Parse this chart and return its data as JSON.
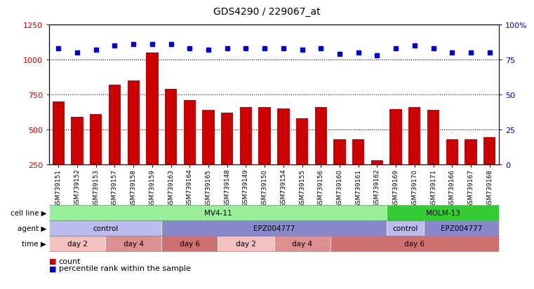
{
  "title": "GDS4290 / 229067_at",
  "samples": [
    "GSM739151",
    "GSM739152",
    "GSM739153",
    "GSM739157",
    "GSM739158",
    "GSM739159",
    "GSM739163",
    "GSM739164",
    "GSM739165",
    "GSM739148",
    "GSM739149",
    "GSM739150",
    "GSM739154",
    "GSM739155",
    "GSM739156",
    "GSM739160",
    "GSM739161",
    "GSM739162",
    "GSM739169",
    "GSM739170",
    "GSM739171",
    "GSM739166",
    "GSM739167",
    "GSM739168"
  ],
  "counts": [
    700,
    590,
    610,
    820,
    850,
    1050,
    790,
    710,
    640,
    620,
    660,
    660,
    650,
    580,
    660,
    430,
    430,
    280,
    645,
    660,
    640,
    430,
    430,
    445
  ],
  "percentile": [
    83,
    80,
    82,
    85,
    86,
    86,
    86,
    83,
    82,
    83,
    83,
    83,
    83,
    82,
    83,
    79,
    80,
    78,
    83,
    85,
    83,
    80,
    80,
    80
  ],
  "ylim_left": [
    250,
    1250
  ],
  "ylim_right": [
    0,
    100
  ],
  "yticks_left": [
    250,
    500,
    750,
    1000,
    1250
  ],
  "yticks_right": [
    0,
    25,
    50,
    75,
    100
  ],
  "bar_color": "#cc0000",
  "dot_color": "#0000cc",
  "cell_line_groups": [
    {
      "label": "MV4-11",
      "start": 0,
      "end": 18,
      "color": "#99ee99"
    },
    {
      "label": "MOLM-13",
      "start": 18,
      "end": 24,
      "color": "#33cc33"
    }
  ],
  "agent_groups": [
    {
      "label": "control",
      "start": 0,
      "end": 6,
      "color": "#bbbbee"
    },
    {
      "label": "EPZ004777",
      "start": 6,
      "end": 18,
      "color": "#8888cc"
    },
    {
      "label": "control",
      "start": 18,
      "end": 20,
      "color": "#bbbbee"
    },
    {
      "label": "EPZ004777",
      "start": 20,
      "end": 24,
      "color": "#8888cc"
    }
  ],
  "time_groups": [
    {
      "label": "day 2",
      "start": 0,
      "end": 3,
      "color": "#f5c0c0"
    },
    {
      "label": "day 4",
      "start": 3,
      "end": 6,
      "color": "#dd9090"
    },
    {
      "label": "day 6",
      "start": 6,
      "end": 9,
      "color": "#cc7070"
    },
    {
      "label": "day 2",
      "start": 9,
      "end": 12,
      "color": "#f5c0c0"
    },
    {
      "label": "day 4",
      "start": 12,
      "end": 15,
      "color": "#dd9090"
    },
    {
      "label": "day 6",
      "start": 15,
      "end": 24,
      "color": "#cc7070"
    }
  ],
  "axis_color_left": "#cc0000",
  "axis_color_right": "#0000cc",
  "grid_dotted_at": [
    500,
    750,
    1000
  ],
  "legend": [
    {
      "label": "count",
      "color": "#cc0000"
    },
    {
      "label": "percentile rank within the sample",
      "color": "#0000cc"
    }
  ]
}
